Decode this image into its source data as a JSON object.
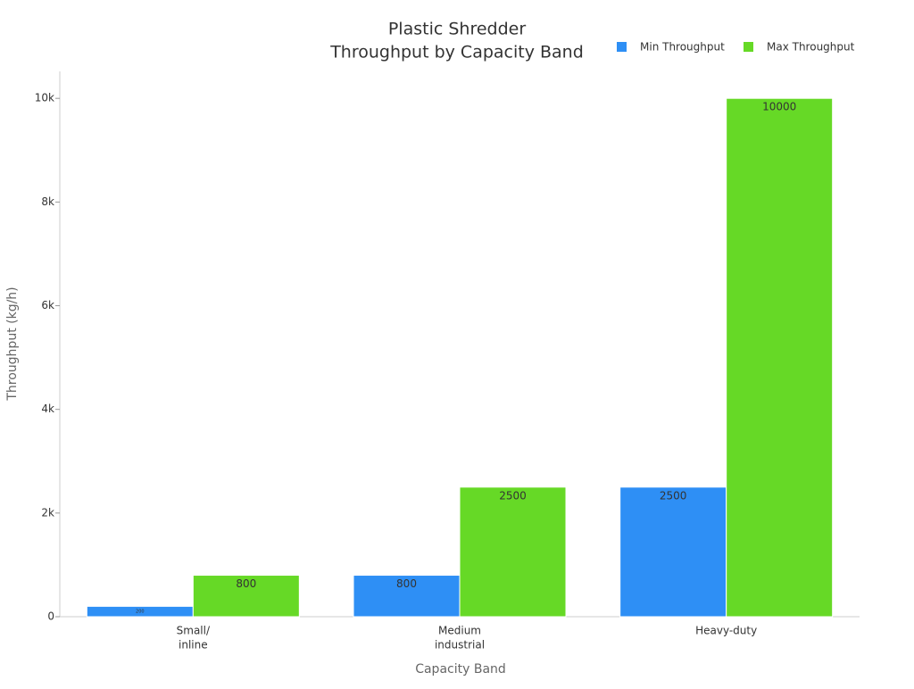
{
  "chart_data": {
    "type": "bar",
    "title": [
      "Plastic Shredder",
      "Throughput by Capacity Band"
    ],
    "x_label": "Capacity Band",
    "y_label": "Throughput (kg/h)",
    "categories": [
      [
        "Small/",
        "inline"
      ],
      [
        "Medium",
        "industrial"
      ],
      [
        "Heavy-duty"
      ]
    ],
    "series": [
      {
        "name": "Min Throughput",
        "color": "#2e8ff5",
        "values": [
          200,
          800,
          2500
        ]
      },
      {
        "name": "Max Throughput",
        "color": "#66d926",
        "values": [
          800,
          2500,
          10000
        ]
      }
    ],
    "ylim": [
      0,
      10520
    ],
    "yticks": [
      0,
      {
        "value": 2000,
        "label": "2k"
      },
      {
        "value": 4000,
        "label": "4k"
      },
      {
        "value": 6000,
        "label": "6k"
      },
      {
        "value": 8000,
        "label": "8k"
      },
      {
        "value": 10000,
        "label": "10k"
      }
    ],
    "grid": false,
    "legend": "top-right"
  }
}
